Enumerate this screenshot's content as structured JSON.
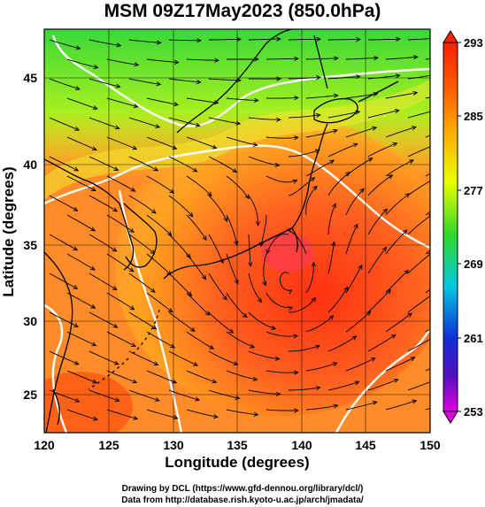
{
  "title": "MSM 09Z17May2023 (850.0hPa)",
  "x_axis": {
    "label": "Longitude (degrees)",
    "ticks": [
      "120",
      "125",
      "130",
      "135",
      "140",
      "145",
      "150"
    ],
    "range": [
      120,
      150
    ]
  },
  "y_axis": {
    "label": "Latitude  (degrees)",
    "ticks": [
      "25",
      "30",
      "35",
      "40",
      "45"
    ],
    "range": [
      23,
      48
    ]
  },
  "colorbar": {
    "ticks": [
      "293",
      "285",
      "277",
      "269",
      "261",
      "253"
    ],
    "range": [
      253,
      293
    ],
    "colors": [
      "#e000e0",
      "#2020d0",
      "#00c8e0",
      "#18c818",
      "#e8ff00",
      "#ff9000",
      "#ff2000"
    ]
  },
  "credits": {
    "line1": "Drawing by DCL (https://www.gfd-dennou.org/library/dcl/)",
    "line2": "Data from http://database.rish.kyoto-u.ac.jp/arch/jmadata/"
  }
}
